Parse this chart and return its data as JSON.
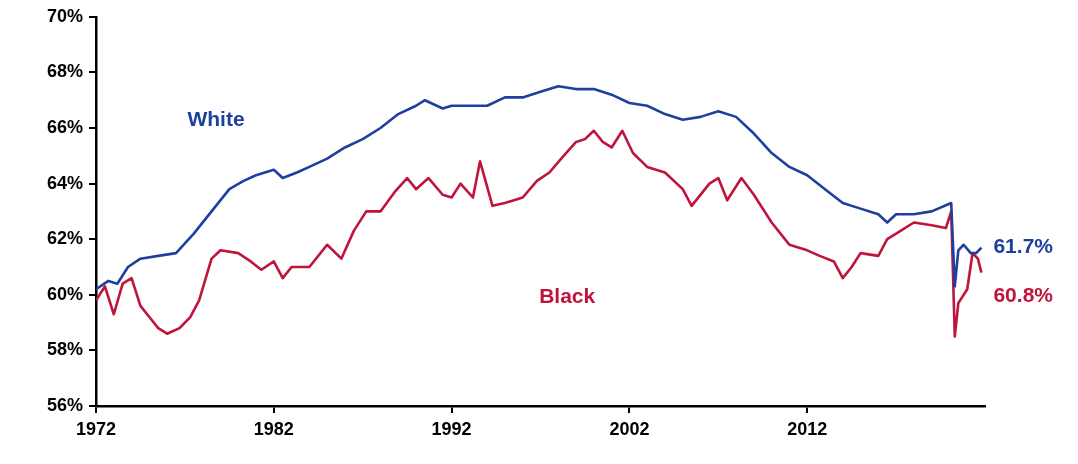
{
  "chart_data": {
    "type": "line",
    "legend": false,
    "grid": false,
    "xlim": [
      1972,
      2022
    ],
    "xticks": [
      1972,
      1982,
      1992,
      2002,
      2012
    ],
    "ylim": [
      56,
      70
    ],
    "yticks": [
      {
        "value": 56,
        "label": "56%"
      },
      {
        "value": 58,
        "label": "58%"
      },
      {
        "value": 60,
        "label": "60%"
      },
      {
        "value": 62,
        "label": "62%"
      },
      {
        "value": 64,
        "label": "64%"
      },
      {
        "value": 66,
        "label": "66%"
      },
      {
        "value": 68,
        "label": "68%"
      },
      {
        "value": 70,
        "label": "70%"
      }
    ],
    "series": [
      {
        "name": "White",
        "color": "#1f3f9f",
        "x": [
          1972.0,
          1972.7,
          1973.2,
          1973.8,
          1974.5,
          1975.5,
          1976.5,
          1977.5,
          1978.5,
          1979.5,
          1980.3,
          1981.0,
          1982.0,
          1982.5,
          1983.3,
          1984.0,
          1985.0,
          1986.0,
          1987.0,
          1988.0,
          1989.0,
          1990.0,
          1990.5,
          1991.5,
          1992.0,
          1993.0,
          1994.0,
          1995.0,
          1996.0,
          1997.0,
          1998.0,
          1999.0,
          2000.0,
          2001.0,
          2002.0,
          2003.0,
          2004.0,
          2005.0,
          2006.0,
          2007.0,
          2008.0,
          2009.0,
          2010.0,
          2011.0,
          2012.0,
          2013.0,
          2014.0,
          2015.0,
          2016.0,
          2016.5,
          2017.0,
          2018.0,
          2019.0,
          2020.1,
          2020.3,
          2020.5,
          2020.8,
          2021.2,
          2021.5,
          2021.8
        ],
        "values": [
          60.2,
          60.5,
          60.4,
          61.0,
          61.3,
          61.4,
          61.5,
          62.2,
          63.0,
          63.8,
          64.1,
          64.3,
          64.5,
          64.2,
          64.4,
          64.6,
          64.9,
          65.3,
          65.6,
          66.0,
          66.5,
          66.8,
          67.0,
          66.7,
          66.8,
          66.8,
          66.8,
          67.1,
          67.1,
          67.3,
          67.5,
          67.4,
          67.4,
          67.2,
          66.9,
          66.8,
          66.5,
          66.3,
          66.4,
          66.6,
          66.4,
          65.8,
          65.1,
          64.6,
          64.3,
          63.8,
          63.3,
          63.1,
          62.9,
          62.6,
          62.9,
          62.9,
          63.0,
          63.3,
          60.3,
          61.6,
          61.8,
          61.5,
          61.5,
          61.7
        ]
      },
      {
        "name": "Black",
        "color": "#c0143c",
        "x": [
          1972.0,
          1972.5,
          1973.0,
          1973.5,
          1974.0,
          1974.5,
          1975.0,
          1975.5,
          1976.0,
          1976.7,
          1977.3,
          1977.8,
          1978.5,
          1979.0,
          1980.0,
          1980.7,
          1981.3,
          1982.0,
          1982.5,
          1983.0,
          1984.0,
          1985.0,
          1985.8,
          1986.5,
          1987.2,
          1988.0,
          1988.8,
          1989.5,
          1990.0,
          1990.7,
          1991.5,
          1992.0,
          1992.5,
          1993.2,
          1993.6,
          1994.3,
          1995.0,
          1996.0,
          1996.8,
          1997.5,
          1998.3,
          1999.0,
          1999.5,
          2000.0,
          2000.5,
          2001.0,
          2001.6,
          2002.2,
          2003.0,
          2004.0,
          2005.0,
          2005.5,
          2006.5,
          2007.0,
          2007.5,
          2008.3,
          2009.0,
          2010.0,
          2010.5,
          2011.0,
          2012.0,
          2012.7,
          2013.5,
          2014.0,
          2014.5,
          2015.0,
          2016.0,
          2016.5,
          2017.0,
          2018.0,
          2019.0,
          2019.8,
          2020.1,
          2020.3,
          2020.5,
          2021.0,
          2021.3,
          2021.6,
          2021.8
        ],
        "values": [
          59.8,
          60.3,
          59.3,
          60.4,
          60.6,
          59.6,
          59.2,
          58.8,
          58.6,
          58.8,
          59.2,
          59.8,
          61.3,
          61.6,
          61.5,
          61.2,
          60.9,
          61.2,
          60.6,
          61.0,
          61.0,
          61.8,
          61.3,
          62.3,
          63.0,
          63.0,
          63.7,
          64.2,
          63.8,
          64.2,
          63.6,
          63.5,
          64.0,
          63.5,
          64.8,
          63.2,
          63.3,
          63.5,
          64.1,
          64.4,
          65.0,
          65.5,
          65.6,
          65.9,
          65.5,
          65.3,
          65.9,
          65.1,
          64.6,
          64.4,
          63.8,
          63.2,
          64.0,
          64.2,
          63.4,
          64.2,
          63.6,
          62.6,
          62.2,
          61.8,
          61.6,
          61.4,
          61.2,
          60.6,
          61.0,
          61.5,
          61.4,
          62.0,
          62.2,
          62.6,
          62.5,
          62.4,
          63.0,
          58.5,
          59.7,
          60.2,
          61.5,
          61.3,
          60.8
        ]
      }
    ],
    "annotations": [
      {
        "text": "61.7%",
        "x": 2021.8,
        "y": 61.7
      },
      {
        "text": "60.8%",
        "x": 2021.8,
        "y": 60.8
      }
    ]
  }
}
